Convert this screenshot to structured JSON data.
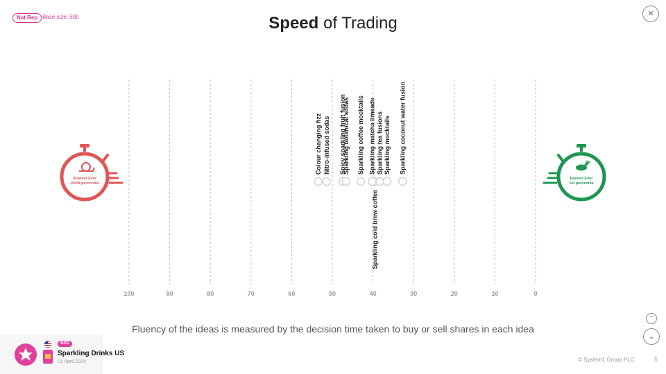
{
  "header": {
    "badge": "Nat Rep",
    "base_size": "Base size: 500",
    "title_bold": "Speed",
    "title_rest": " of Trading"
  },
  "chart_data": {
    "type": "scatter",
    "x_axis": {
      "ticks": [
        100,
        90,
        80,
        70,
        60,
        50,
        40,
        30,
        20,
        10,
        0
      ],
      "range": [
        100,
        0
      ],
      "direction": "reversed",
      "grid": true
    },
    "left_marker": {
      "label_line1": "Slowest Ever",
      "label_line2": "100th percentile",
      "color": "#e05555",
      "icon": "snail-icon"
    },
    "right_marker": {
      "label_line1": "Fastest Ever",
      "label_line2": "1st percentile",
      "color": "#1f9650",
      "icon": "rabbit-icon"
    },
    "gradient_colors": [
      "#e05555",
      "#1f9650"
    ],
    "points": [
      {
        "label": "Colour changing fizz",
        "value": 53.4,
        "position": "above"
      },
      {
        "label": "Nitro-infused sodas",
        "value": 51.4,
        "position": "above"
      },
      {
        "label": "Spicy sparkling fruit fusion",
        "value": 47.4,
        "position": "above"
      },
      {
        "label": "Sparkling botanical sodas",
        "value": 46.6,
        "position": "above"
      },
      {
        "label": "Sparkling coffee mocktails",
        "value": 43.0,
        "position": "above"
      },
      {
        "label": "Sparkling cold brew coffee",
        "value": 39.5,
        "position": "below"
      },
      {
        "label": "Sparkling matcha limeade",
        "value": 40.2,
        "position": "above"
      },
      {
        "label": "Sparkling tea fusions",
        "value": 38.3,
        "position": "above"
      },
      {
        "label": "Sparkling mocktails",
        "value": 36.5,
        "position": "above"
      },
      {
        "label": "Sparkling coconut water fusion",
        "value": 32.7,
        "position": "above"
      }
    ]
  },
  "caption": "Fluency of the ideas is measured by the decision time taken to buy or sell shares in each idea",
  "footer": {
    "tag": "NPD",
    "project": "Sparkling Drinks US",
    "date": "01 April 2024",
    "copyright": "© System1 Group PLC",
    "page": "5"
  },
  "nav": {
    "close": "×",
    "up": "⌃",
    "down": "⌄"
  }
}
